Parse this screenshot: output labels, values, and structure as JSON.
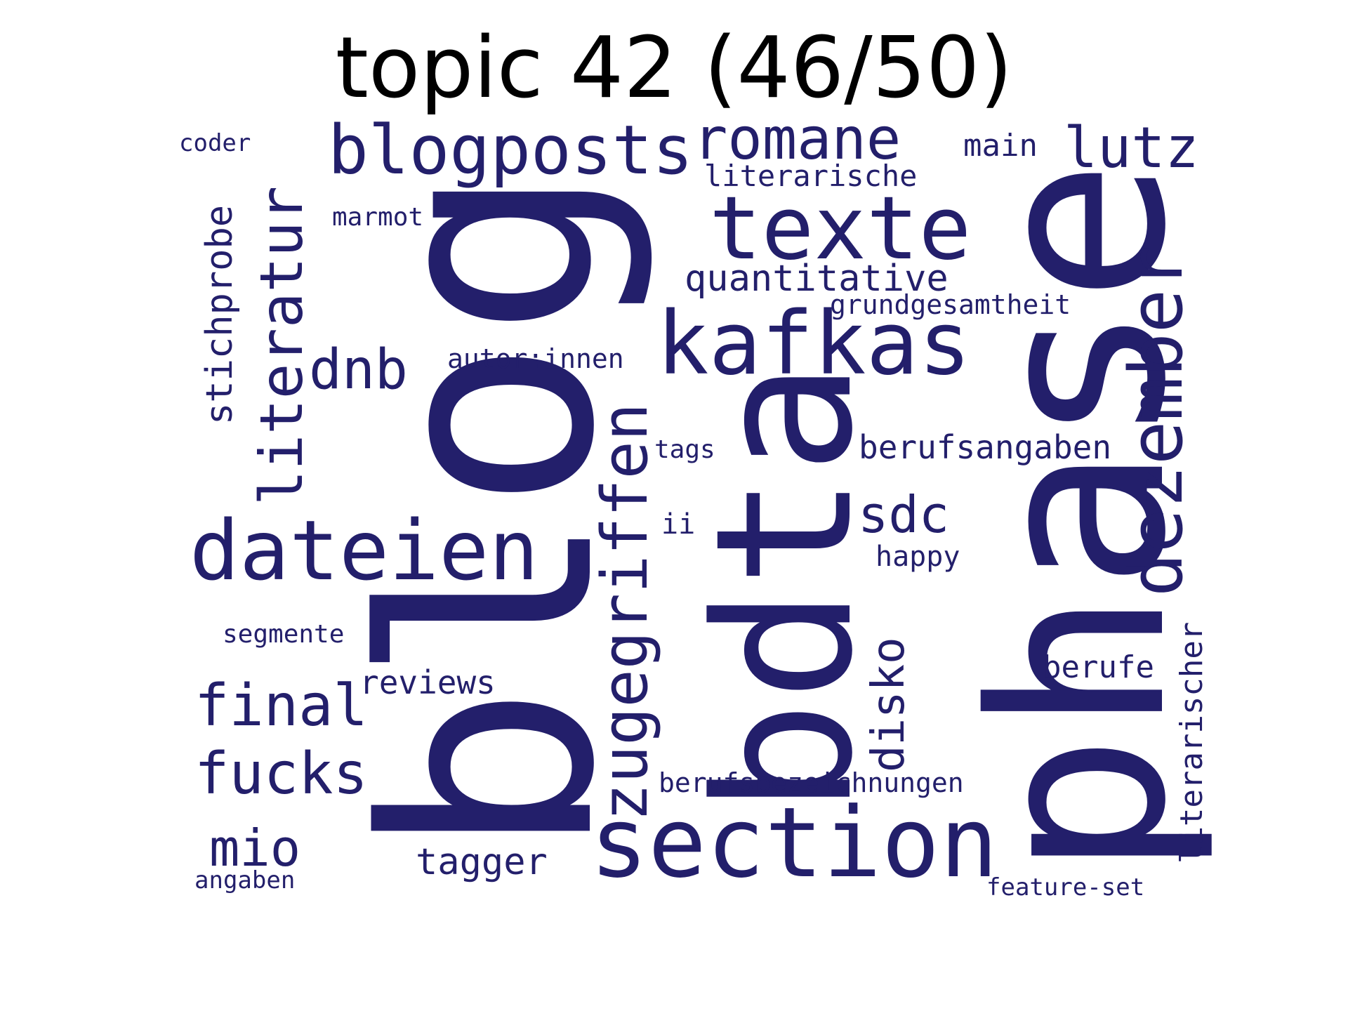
{
  "title": "topic 42 (46/50)",
  "word_color": "#231f6b",
  "words": [
    {
      "id": "blog",
      "text": "blog"
    },
    {
      "id": "phase",
      "text": "phase"
    },
    {
      "id": "bdta",
      "text": "bdta"
    },
    {
      "id": "section",
      "text": "section"
    },
    {
      "id": "kafkas",
      "text": "kafkas"
    },
    {
      "id": "texte",
      "text": "texte"
    },
    {
      "id": "dateien",
      "text": "dateien"
    },
    {
      "id": "dezember",
      "text": "dezember"
    },
    {
      "id": "zugegriffen",
      "text": "zugegriffen"
    },
    {
      "id": "blogposts",
      "text": "blogposts"
    },
    {
      "id": "romane",
      "text": "romane"
    },
    {
      "id": "literatur",
      "text": "literatur"
    },
    {
      "id": "lutz",
      "text": "lutz"
    },
    {
      "id": "final",
      "text": "final"
    },
    {
      "id": "fucks",
      "text": "fucks"
    },
    {
      "id": "dnb",
      "text": "dnb"
    },
    {
      "id": "sdc",
      "text": "sdc"
    },
    {
      "id": "mio",
      "text": "mio"
    },
    {
      "id": "disko",
      "text": "disko"
    },
    {
      "id": "quantitative",
      "text": "quantitative"
    },
    {
      "id": "stichprobe",
      "text": "stichprobe"
    },
    {
      "id": "tagger",
      "text": "tagger"
    },
    {
      "id": "berufsangaben",
      "text": "berufsangaben"
    },
    {
      "id": "literarischer",
      "text": "literarischer"
    },
    {
      "id": "berufe",
      "text": "berufe"
    },
    {
      "id": "reviews",
      "text": "reviews"
    },
    {
      "id": "literarische",
      "text": "literarische"
    },
    {
      "id": "main",
      "text": "main"
    },
    {
      "id": "grundgesamtheit",
      "text": "grundgesamtheit"
    },
    {
      "id": "autor-innen",
      "text": "autor:innen"
    },
    {
      "id": "berufsbezeichnungen",
      "text": "berufsbezeichnungen"
    },
    {
      "id": "happy",
      "text": "happy"
    },
    {
      "id": "marmot",
      "text": "marmot"
    },
    {
      "id": "ii",
      "text": "ii"
    },
    {
      "id": "segmente",
      "text": "segmente"
    },
    {
      "id": "tags",
      "text": "tags"
    },
    {
      "id": "feature-set",
      "text": "feature-set"
    },
    {
      "id": "coder",
      "text": "coder"
    },
    {
      "id": "angaben",
      "text": "angaben"
    }
  ]
}
